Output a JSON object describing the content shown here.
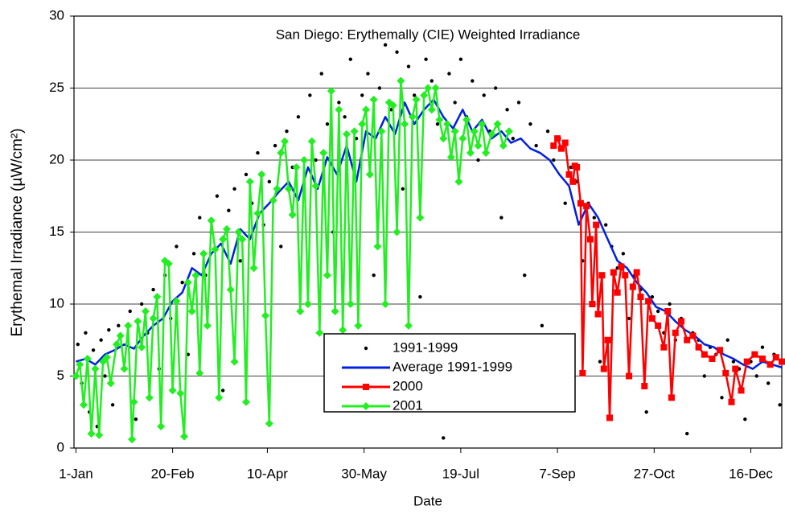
{
  "chart_data": {
    "type": "line",
    "title": "San Diego: Erythemally (CIE) Weighted Irradiance",
    "x_label": "Date",
    "y_label": "Erythemal Irradiance (µW/cm²)",
    "xlim": [
      0,
      366
    ],
    "xticks": [
      {
        "value": 1,
        "label": "1-Jan"
      },
      {
        "value": 51,
        "label": "20-Feb"
      },
      {
        "value": 100,
        "label": "10-Apr"
      },
      {
        "value": 150,
        "label": "30-May"
      },
      {
        "value": 200,
        "label": "19-Jul"
      },
      {
        "value": 250,
        "label": "7-Sep"
      },
      {
        "value": 300,
        "label": "27-Oct"
      },
      {
        "value": 350,
        "label": "16-Dec"
      }
    ],
    "ylim": [
      0,
      30
    ],
    "yticks": [
      0,
      5,
      10,
      15,
      20,
      25,
      30
    ],
    "grid": true,
    "legend": "lower-center",
    "series": [
      {
        "name": "1991-1999",
        "color": "#000000",
        "marker": "dot",
        "line": false,
        "x": [
          2,
          4,
          6,
          8,
          10,
          12,
          14,
          16,
          18,
          20,
          23,
          26,
          29,
          32,
          35,
          38,
          41,
          44,
          47,
          50,
          53,
          56,
          59,
          62,
          65,
          68,
          71,
          74,
          77,
          80,
          83,
          86,
          89,
          92,
          95,
          98,
          101,
          104,
          107,
          110,
          113,
          116,
          119,
          122,
          125,
          128,
          131,
          134,
          137,
          140,
          143,
          146,
          149,
          152,
          155,
          158,
          161,
          164,
          167,
          170,
          173,
          176,
          179,
          182,
          185,
          188,
          191,
          194,
          197,
          200,
          203,
          206,
          209,
          212,
          215,
          218,
          221,
          224,
          227,
          230,
          233,
          236,
          239,
          242,
          245,
          248,
          251,
          254,
          257,
          260,
          263,
          266,
          269,
          272,
          275,
          278,
          281,
          284,
          287,
          290,
          293,
          296,
          299,
          302,
          305,
          308,
          311,
          314,
          317,
          320,
          323,
          326,
          329,
          332,
          335,
          338,
          341,
          344,
          347,
          350,
          353,
          356,
          359,
          362,
          365
        ],
        "values": [
          7.2,
          4.5,
          8.0,
          2.5,
          6.8,
          1.5,
          7.5,
          5.0,
          8.2,
          3.0,
          8.5,
          6.0,
          9.5,
          2.0,
          10.0,
          8.0,
          11.0,
          5.5,
          12.0,
          9.0,
          14.0,
          11.5,
          6.5,
          13.5,
          16.0,
          12.0,
          15.0,
          17.5,
          4.0,
          16.5,
          18.0,
          13.0,
          19.0,
          17.0,
          20.5,
          15.5,
          18.5,
          21.0,
          14.0,
          22.0,
          19.5,
          23.0,
          17.5,
          24.5,
          20.0,
          26.0,
          22.5,
          15.0,
          24.0,
          23.0,
          27.0,
          21.5,
          24.5,
          26.0,
          12.0,
          25.0,
          28.0,
          23.5,
          27.5,
          18.0,
          26.5,
          24.5,
          10.5,
          27.0,
          25.5,
          22.5,
          0.7,
          26.0,
          24.0,
          27.0,
          23.0,
          25.5,
          20.0,
          24.5,
          22.0,
          25.0,
          16.0,
          23.5,
          21.5,
          24.0,
          12.0,
          22.5,
          21.0,
          8.5,
          22.0,
          20.0,
          21.5,
          17.0,
          19.5,
          18.5,
          13.0,
          17.0,
          16.0,
          6.0,
          15.5,
          14.0,
          12.5,
          13.5,
          9.0,
          12.0,
          11.0,
          2.5,
          10.5,
          9.5,
          8.0,
          10.0,
          7.5,
          9.0,
          1.0,
          8.0,
          7.5,
          5.0,
          7.0,
          6.5,
          3.5,
          7.5,
          6.0,
          5.5,
          2.0,
          6.0,
          5.0,
          7.0,
          4.5,
          6.5,
          3.0
        ]
      },
      {
        "name": "Average 1991-1999",
        "color": "#0020e0",
        "marker": "none",
        "line": true,
        "x": [
          1,
          6,
          11,
          16,
          21,
          26,
          31,
          36,
          41,
          46,
          51,
          56,
          61,
          66,
          71,
          76,
          81,
          86,
          91,
          96,
          101,
          106,
          111,
          116,
          121,
          126,
          131,
          136,
          141,
          146,
          151,
          156,
          161,
          166,
          171,
          176,
          181,
          186,
          191,
          196,
          201,
          206,
          211,
          216,
          221,
          226,
          231,
          236,
          241,
          246,
          251,
          256,
          261,
          266,
          271,
          276,
          281,
          286,
          291,
          296,
          301,
          306,
          311,
          316,
          321,
          326,
          331,
          336,
          341,
          346,
          351,
          356,
          361,
          366
        ],
        "values": [
          6.0,
          6.2,
          5.8,
          6.5,
          6.8,
          7.2,
          6.9,
          7.8,
          8.5,
          9.0,
          10.2,
          10.8,
          12.5,
          12.0,
          13.5,
          14.2,
          12.8,
          15.2,
          14.5,
          16.3,
          17.0,
          17.8,
          18.5,
          17.2,
          19.5,
          18.0,
          20.2,
          19.0,
          21.0,
          18.5,
          22.0,
          21.5,
          23.0,
          21.8,
          24.0,
          22.5,
          23.5,
          24.2,
          23.0,
          22.2,
          23.5,
          22.0,
          22.8,
          21.5,
          22.0,
          21.2,
          21.5,
          20.8,
          20.5,
          20.0,
          19.0,
          18.2,
          15.5,
          17.0,
          16.0,
          14.5,
          13.0,
          12.5,
          11.5,
          10.8,
          9.8,
          9.5,
          8.8,
          8.2,
          7.8,
          7.2,
          7.0,
          6.5,
          6.2,
          5.8,
          5.5,
          6.0,
          5.8,
          5.6
        ]
      },
      {
        "name": "2000",
        "color": "#ff0000",
        "marker": "square",
        "line": true,
        "x": [
          248,
          250,
          252,
          254,
          256,
          258,
          259,
          260,
          262,
          263,
          265,
          267,
          268,
          270,
          271,
          273,
          274,
          276,
          277,
          279,
          281,
          283,
          285,
          287,
          289,
          291,
          293,
          295,
          297,
          299,
          302,
          305,
          307,
          309,
          311,
          314,
          317,
          320,
          323,
          326,
          330,
          334,
          337,
          340,
          342,
          345,
          348,
          352,
          356,
          360,
          363,
          366
        ],
        "values": [
          21.0,
          21.5,
          20.8,
          21.2,
          19.0,
          18.5,
          19.6,
          19.5,
          17.0,
          5.2,
          16.8,
          14.5,
          10.0,
          15.5,
          9.3,
          12.0,
          5.5,
          7.5,
          2.1,
          12.2,
          10.8,
          12.6,
          12.0,
          5.0,
          11.2,
          12.2,
          10.5,
          4.3,
          10.2,
          9.0,
          8.5,
          7.0,
          9.5,
          3.5,
          8.0,
          8.8,
          7.5,
          7.8,
          7.0,
          6.5,
          6.2,
          6.8,
          5.2,
          3.2,
          5.5,
          4.0,
          6.0,
          6.5,
          6.2,
          5.8,
          6.3,
          6.0
        ]
      },
      {
        "name": "2001",
        "color": "#22ee22",
        "marker": "diamond",
        "line": true,
        "x": [
          1,
          3,
          5,
          7,
          9,
          11,
          13,
          15,
          17,
          19,
          22,
          24,
          26,
          28,
          30,
          31,
          33,
          35,
          37,
          39,
          41,
          43,
          45,
          47,
          49,
          51,
          53,
          55,
          57,
          59,
          61,
          63,
          65,
          67,
          69,
          71,
          73,
          75,
          77,
          79,
          81,
          83,
          85,
          87,
          89,
          91,
          93,
          95,
          97,
          99,
          101,
          103,
          105,
          107,
          109,
          111,
          113,
          115,
          117,
          119,
          121,
          123,
          125,
          127,
          129,
          131,
          133,
          135,
          137,
          139,
          141,
          143,
          145,
          147,
          149,
          151,
          153,
          155,
          157,
          159,
          161,
          163,
          165,
          167,
          169,
          171,
          173,
          175,
          177,
          179,
          181,
          183,
          185,
          187,
          189,
          191,
          193,
          195,
          197,
          199,
          201,
          203,
          205,
          207,
          209,
          211,
          213,
          216,
          219,
          222,
          225
        ],
        "values": [
          5.0,
          5.8,
          3.0,
          6.2,
          1.0,
          5.5,
          0.9,
          6.0,
          6.3,
          4.5,
          7.2,
          7.8,
          5.5,
          8.5,
          0.6,
          3.2,
          8.8,
          7.0,
          9.5,
          3.5,
          9.0,
          10.5,
          1.5,
          13.0,
          12.8,
          4.0,
          10.2,
          3.8,
          0.8,
          11.5,
          9.5,
          12.0,
          5.2,
          13.5,
          8.5,
          15.8,
          13.8,
          3.5,
          14.5,
          15.2,
          11.0,
          6.0,
          15.0,
          14.5,
          3.2,
          18.5,
          12.5,
          16.3,
          19.0,
          9.2,
          1.7,
          17.2,
          18.0,
          20.5,
          21.3,
          18.0,
          16.2,
          19.5,
          9.5,
          20.0,
          10.0,
          21.3,
          18.2,
          8.0,
          20.5,
          12.0,
          24.8,
          9.5,
          23.5,
          8.2,
          21.8,
          10.0,
          22.0,
          8.5,
          22.5,
          23.5,
          19.0,
          24.2,
          14.0,
          22.0,
          10.0,
          24.0,
          23.8,
          15.0,
          25.5,
          22.5,
          8.5,
          23.0,
          24.2,
          16.0,
          24.5,
          25.0,
          23.5,
          25.0,
          22.8,
          21.5,
          22.5,
          20.2,
          22.0,
          18.5,
          21.5,
          22.8,
          20.5,
          22.0,
          21.0,
          22.5,
          20.5,
          21.8,
          22.5,
          21.0,
          22.0
        ]
      }
    ]
  }
}
